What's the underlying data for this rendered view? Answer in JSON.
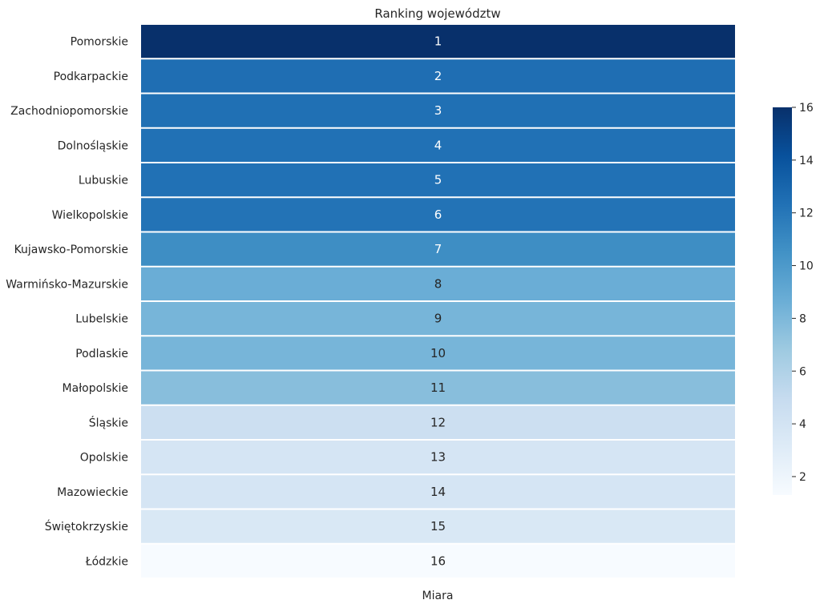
{
  "chart_data": {
    "type": "heatmap",
    "title": "Ranking województw",
    "xlabel": "Miara",
    "ylabel": "",
    "rows": [
      "Pomorskie",
      "Podkarpackie",
      "Zachodniopomorskie",
      "Dolnośląskie",
      "Lubuskie",
      "Wielkopolskie",
      "Kujawsko-Pomorskie",
      "Warmińsko-Mazurskie",
      "Lubelskie",
      "Podlaskie",
      "Małopolskie",
      "Śląskie",
      "Opolskie",
      "Mazowieckie",
      "Świętokrzyskie",
      "Łódzkie"
    ],
    "columns": [
      "Miara"
    ],
    "annotations": [
      "1",
      "2",
      "3",
      "4",
      "5",
      "6",
      "7",
      "8",
      "9",
      "10",
      "11",
      "12",
      "13",
      "14",
      "15",
      "16"
    ],
    "color_values": [
      16,
      12.5,
      12.4,
      12.3,
      12.3,
      12.2,
      10.7,
      8.7,
      8.2,
      8.2,
      7.6,
      4.5,
      3.8,
      3.8,
      3.5,
      1.3
    ],
    "colorbar": {
      "range": [
        1.3,
        16
      ],
      "ticks": [
        2,
        4,
        6,
        8,
        10,
        12,
        14,
        16
      ],
      "colormap": "Blues"
    },
    "grid": false
  }
}
